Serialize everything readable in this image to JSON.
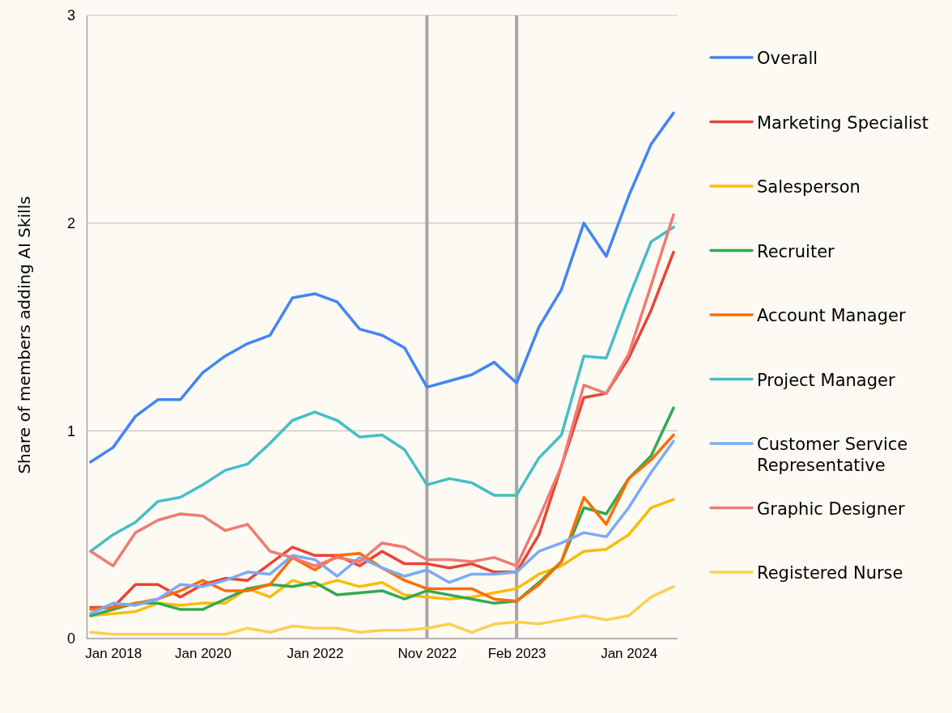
{
  "chart_data": {
    "type": "line",
    "ylabel": "Share of members adding AI Skills",
    "categories": [
      null,
      "Jan 2018",
      null,
      null,
      null,
      "Jan 2020",
      null,
      null,
      null,
      null,
      "Jan 2022",
      null,
      null,
      null,
      null,
      "Nov 2022",
      null,
      null,
      null,
      "Feb 2023",
      null,
      null,
      null,
      null,
      "Jan 2024",
      null,
      null
    ],
    "ylim": [
      0,
      3
    ],
    "yticks": [
      0,
      1,
      2,
      3
    ],
    "grid": "y",
    "legend": "right",
    "line_style": "solid",
    "ref_lines": [
      {
        "axis": "x",
        "value": "Nov 2022",
        "color": "#a6a6a6"
      },
      {
        "axis": "x",
        "value": "Feb 2023",
        "color": "#a6a6a6"
      }
    ],
    "series": [
      {
        "name": "Overall",
        "color": "#4285f4",
        "values": [
          0.85,
          0.92,
          1.07,
          1.15,
          1.15,
          1.28,
          1.36,
          1.42,
          1.46,
          1.64,
          1.66,
          1.62,
          1.49,
          1.46,
          1.4,
          1.21,
          1.24,
          1.27,
          1.33,
          1.23,
          1.5,
          1.68,
          2.0,
          1.84,
          2.13,
          2.38,
          2.53
        ]
      },
      {
        "name": "Marketing Specialist",
        "color": "#ea4335",
        "values": [
          0.15,
          0.15,
          0.26,
          0.26,
          0.2,
          0.26,
          0.29,
          0.28,
          0.36,
          0.44,
          0.4,
          0.4,
          0.35,
          0.42,
          0.36,
          0.36,
          0.34,
          0.36,
          0.32,
          0.32,
          0.5,
          0.83,
          1.16,
          1.18,
          1.35,
          1.58,
          1.86
        ]
      },
      {
        "name": "Salesperson",
        "color": "#fbbc04",
        "values": [
          0.11,
          0.12,
          0.13,
          0.17,
          0.16,
          0.17,
          0.17,
          0.24,
          0.2,
          0.28,
          0.25,
          0.28,
          0.25,
          0.27,
          0.21,
          0.2,
          0.19,
          0.2,
          0.22,
          0.24,
          0.31,
          0.35,
          0.42,
          0.43,
          0.5,
          0.63,
          0.67
        ]
      },
      {
        "name": "Recruiter",
        "color": "#34a853",
        "values": [
          0.11,
          0.14,
          0.17,
          0.17,
          0.14,
          0.14,
          0.19,
          0.24,
          0.26,
          0.25,
          0.27,
          0.21,
          0.22,
          0.23,
          0.19,
          0.23,
          0.21,
          0.19,
          0.17,
          0.18,
          0.27,
          0.37,
          0.63,
          0.6,
          0.77,
          0.88,
          1.11
        ]
      },
      {
        "name": "Account Manager",
        "color": "#ff6d01",
        "values": [
          0.14,
          0.15,
          0.17,
          0.19,
          0.23,
          0.28,
          0.23,
          0.23,
          0.26,
          0.39,
          0.33,
          0.4,
          0.41,
          0.34,
          0.28,
          0.24,
          0.24,
          0.24,
          0.19,
          0.18,
          0.26,
          0.37,
          0.68,
          0.55,
          0.77,
          0.86,
          0.98
        ]
      },
      {
        "name": "Project Manager",
        "color": "#46bdc6",
        "values": [
          0.42,
          0.5,
          0.56,
          0.66,
          0.68,
          0.74,
          0.81,
          0.84,
          0.94,
          1.05,
          1.09,
          1.05,
          0.97,
          0.98,
          0.91,
          0.74,
          0.77,
          0.75,
          0.69,
          0.69,
          0.87,
          0.98,
          1.36,
          1.35,
          1.64,
          1.91,
          1.98
        ]
      },
      {
        "name": "Customer Service Representative",
        "color": "#7baaf7",
        "values": [
          0.12,
          0.17,
          0.16,
          0.19,
          0.26,
          0.25,
          0.28,
          0.32,
          0.31,
          0.4,
          0.38,
          0.3,
          0.39,
          0.34,
          0.3,
          0.33,
          0.27,
          0.31,
          0.31,
          0.32,
          0.42,
          0.46,
          0.51,
          0.49,
          0.63,
          0.8,
          0.95
        ]
      },
      {
        "name": "Graphic Designer",
        "color": "#f07b72",
        "values": [
          0.42,
          0.35,
          0.51,
          0.57,
          0.6,
          0.59,
          0.52,
          0.55,
          0.42,
          0.39,
          0.35,
          0.39,
          0.37,
          0.46,
          0.44,
          0.38,
          0.38,
          0.37,
          0.39,
          0.35,
          0.58,
          0.83,
          1.22,
          1.18,
          1.37,
          1.7,
          2.04
        ]
      },
      {
        "name": "Registered Nurse",
        "color": "#fcd04f",
        "values": [
          0.03,
          0.02,
          0.02,
          0.02,
          0.02,
          0.02,
          0.02,
          0.05,
          0.03,
          0.06,
          0.05,
          0.05,
          0.03,
          0.04,
          0.04,
          0.05,
          0.07,
          0.03,
          0.07,
          0.08,
          0.07,
          0.09,
          0.11,
          0.09,
          0.11,
          0.2,
          0.25
        ]
      }
    ]
  }
}
